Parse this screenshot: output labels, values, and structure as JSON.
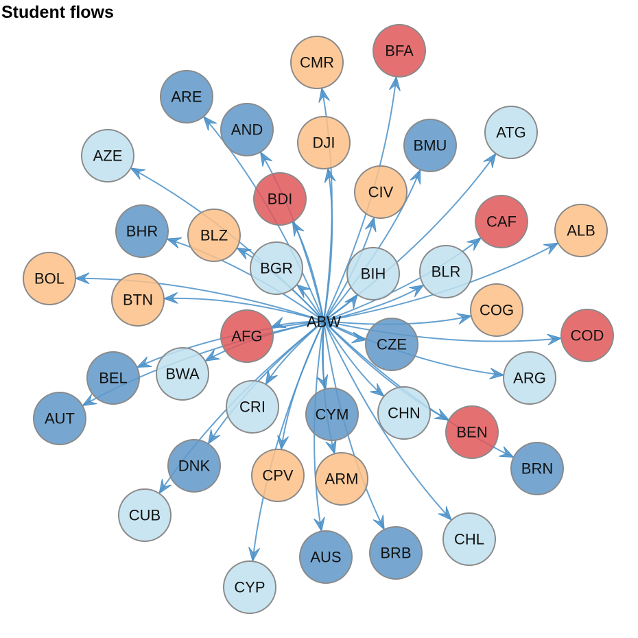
{
  "title": "Student flows",
  "colors": {
    "edge": "#4a90c8",
    "node_stroke": "#8a8a8a",
    "red": "#e15759",
    "orange": "#fdc086",
    "dark_blue": "#5f98c8",
    "light_blue": "#bfe0ee"
  },
  "hub": "ABW",
  "nodes": [
    {
      "id": "CMR",
      "color": "orange"
    },
    {
      "id": "BFA",
      "color": "red"
    },
    {
      "id": "ARE",
      "color": "dark_blue"
    },
    {
      "id": "AND",
      "color": "dark_blue"
    },
    {
      "id": "DJI",
      "color": "orange"
    },
    {
      "id": "BMU",
      "color": "dark_blue"
    },
    {
      "id": "ATG",
      "color": "light_blue"
    },
    {
      "id": "AZE",
      "color": "light_blue"
    },
    {
      "id": "BDI",
      "color": "red"
    },
    {
      "id": "CIV",
      "color": "orange"
    },
    {
      "id": "CAF",
      "color": "red"
    },
    {
      "id": "ALB",
      "color": "orange"
    },
    {
      "id": "BHR",
      "color": "dark_blue"
    },
    {
      "id": "BLZ",
      "color": "orange"
    },
    {
      "id": "BGR",
      "color": "light_blue"
    },
    {
      "id": "BIH",
      "color": "light_blue"
    },
    {
      "id": "BLR",
      "color": "light_blue"
    },
    {
      "id": "BOL",
      "color": "orange"
    },
    {
      "id": "BTN",
      "color": "orange"
    },
    {
      "id": "COG",
      "color": "orange"
    },
    {
      "id": "COD",
      "color": "red"
    },
    {
      "id": "AFG",
      "color": "red"
    },
    {
      "id": "CZE",
      "color": "dark_blue"
    },
    {
      "id": "BEL",
      "color": "dark_blue"
    },
    {
      "id": "BWA",
      "color": "light_blue"
    },
    {
      "id": "ARG",
      "color": "light_blue"
    },
    {
      "id": "AUT",
      "color": "dark_blue"
    },
    {
      "id": "CRI",
      "color": "light_blue"
    },
    {
      "id": "CYM",
      "color": "dark_blue"
    },
    {
      "id": "CHN",
      "color": "light_blue"
    },
    {
      "id": "BEN",
      "color": "red"
    },
    {
      "id": "DNK",
      "color": "dark_blue"
    },
    {
      "id": "CPV",
      "color": "orange"
    },
    {
      "id": "ARM",
      "color": "orange"
    },
    {
      "id": "BRN",
      "color": "dark_blue"
    },
    {
      "id": "CUB",
      "color": "light_blue"
    },
    {
      "id": "AUS",
      "color": "dark_blue"
    },
    {
      "id": "BRB",
      "color": "dark_blue"
    },
    {
      "id": "CHL",
      "color": "light_blue"
    },
    {
      "id": "CYP",
      "color": "light_blue"
    }
  ],
  "edges": [
    {
      "from": "ABW",
      "to": "CMR"
    },
    {
      "from": "ABW",
      "to": "BFA"
    },
    {
      "from": "ABW",
      "to": "ARE"
    },
    {
      "from": "ABW",
      "to": "AND"
    },
    {
      "from": "ABW",
      "to": "DJI"
    },
    {
      "from": "ABW",
      "to": "BMU"
    },
    {
      "from": "ABW",
      "to": "ATG"
    },
    {
      "from": "ABW",
      "to": "AZE"
    },
    {
      "from": "ABW",
      "to": "BDI"
    },
    {
      "from": "ABW",
      "to": "CIV"
    },
    {
      "from": "ABW",
      "to": "CAF"
    },
    {
      "from": "ABW",
      "to": "ALB"
    },
    {
      "from": "ABW",
      "to": "BHR"
    },
    {
      "from": "ABW",
      "to": "BLZ"
    },
    {
      "from": "ABW",
      "to": "BGR"
    },
    {
      "from": "ABW",
      "to": "BIH"
    },
    {
      "from": "ABW",
      "to": "BLR"
    },
    {
      "from": "ABW",
      "to": "BOL"
    },
    {
      "from": "ABW",
      "to": "BTN"
    },
    {
      "from": "ABW",
      "to": "COG"
    },
    {
      "from": "ABW",
      "to": "COD"
    },
    {
      "from": "ABW",
      "to": "AFG"
    },
    {
      "from": "ABW",
      "to": "CZE"
    },
    {
      "from": "ABW",
      "to": "BEL"
    },
    {
      "from": "ABW",
      "to": "BWA"
    },
    {
      "from": "ABW",
      "to": "ARG"
    },
    {
      "from": "ABW",
      "to": "AUT"
    },
    {
      "from": "ABW",
      "to": "CRI"
    },
    {
      "from": "ABW",
      "to": "CYM"
    },
    {
      "from": "ABW",
      "to": "CHN"
    },
    {
      "from": "ABW",
      "to": "BEN"
    },
    {
      "from": "ABW",
      "to": "DNK"
    },
    {
      "from": "ABW",
      "to": "CPV"
    },
    {
      "from": "ABW",
      "to": "ARM"
    },
    {
      "from": "ABW",
      "to": "BRN"
    },
    {
      "from": "ABW",
      "to": "CUB"
    },
    {
      "from": "ABW",
      "to": "AUS"
    },
    {
      "from": "ABW",
      "to": "BRB"
    },
    {
      "from": "ABW",
      "to": "CHL"
    },
    {
      "from": "ABW",
      "to": "CYP"
    }
  ]
}
